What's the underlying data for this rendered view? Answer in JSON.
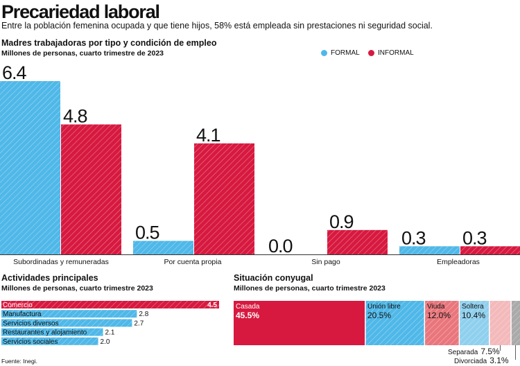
{
  "title": "Precariedad laboral",
  "subtitle": "Entre la población femenina ocupada y que tiene hijos, 58% está empleada sin prestaciones ni seguridad social.",
  "source": "Fuente: Inegi.",
  "colors": {
    "formal": "#4fb8e8",
    "informal": "#d7193f",
    "stripe": "#ffffff"
  },
  "chart_data": [
    {
      "type": "bar",
      "title": "Madres trabajadoras por tipo y condición de empleo",
      "subtitle": "Millones de personas, cuarto trimestre de 2023",
      "categories": [
        "Subordinadas y remuneradas",
        "Por cuenta propia",
        "Sin pago",
        "Empleadoras"
      ],
      "series": [
        {
          "name": "FORMAL",
          "values": [
            6.4,
            0.5,
            0.0,
            0.3
          ]
        },
        {
          "name": "INFORMAL",
          "values": [
            4.8,
            4.1,
            0.9,
            0.3
          ]
        }
      ],
      "value_labels": {
        "FORMAL": [
          "6.4",
          "0.5",
          "0.0",
          "0.3"
        ],
        "INFORMAL": [
          "4.8",
          "4.1",
          "0.9",
          "0.3"
        ]
      },
      "ylim": [
        0,
        6.4
      ]
    },
    {
      "type": "bar",
      "orientation": "horizontal",
      "title": "Actividades principales",
      "subtitle": "Millones de personas, cuarto trimestre 2023",
      "categories": [
        "Comercio",
        "Manufactura",
        "Servicios diversos",
        "Restaurantes y alojamiento",
        "Servicios sociales"
      ],
      "values": [
        4.5,
        2.8,
        2.7,
        2.1,
        2.0
      ],
      "value_labels": [
        "4.5",
        "2.8",
        "2.7",
        "2.1",
        "2.0"
      ],
      "highlight": [
        true,
        false,
        false,
        false,
        false
      ],
      "xlim": [
        0,
        4.5
      ]
    },
    {
      "type": "bar",
      "orientation": "stacked-100",
      "title": "Situación conyugal",
      "subtitle": "Millones de personas, cuarto trimestre 2023",
      "segments": [
        {
          "label": "Casada",
          "value": 45.5,
          "value_label": "45.5%",
          "color": "#d7193f",
          "striped": false,
          "text_color": "#ffffff"
        },
        {
          "label": "Unión libre",
          "value": 20.5,
          "value_label": "20.5%",
          "color": "#4fb8e8",
          "striped": true,
          "text_color": "#111111"
        },
        {
          "label": "Viuda",
          "value": 12.0,
          "value_label": "12.0%",
          "color": "#e9767c",
          "striped": true,
          "text_color": "#111111"
        },
        {
          "label": "Soltera",
          "value": 10.4,
          "value_label": "10.4%",
          "color": "#8fd0ee",
          "striped": true,
          "text_color": "#111111"
        },
        {
          "label": "Separada",
          "value": 7.5,
          "value_label": "7.5%",
          "color": "#f3b9bb",
          "striped": true,
          "text_color": "#111111"
        },
        {
          "label": "Divorciada",
          "value": 3.1,
          "value_label": "3.1%",
          "color": "#aaaaaa",
          "striped": true,
          "text_color": "#111111"
        }
      ],
      "units": "%"
    }
  ]
}
